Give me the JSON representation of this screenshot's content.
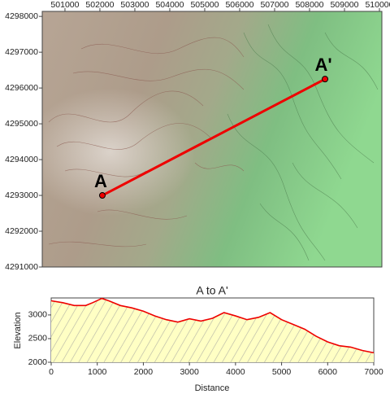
{
  "chart_data": [
    {
      "type": "map",
      "xlim": [
        500350,
        510070
      ],
      "ylim": [
        4291000,
        4298140
      ],
      "xticks": [
        501000,
        502000,
        503000,
        504000,
        505000,
        506000,
        507000,
        508000,
        509000,
        510000
      ],
      "yticks": [
        4291000,
        4292000,
        4293000,
        4294000,
        4295000,
        4296000,
        4297000,
        4298000
      ],
      "points": [
        {
          "label": "A",
          "x": 502070,
          "y": 4293000
        },
        {
          "label": "A'",
          "x": 508443,
          "y": 4296250
        }
      ],
      "color": "#ee0000"
    },
    {
      "type": "area",
      "title": "A to A'",
      "xlabel": "Distance",
      "ylabel": "Elevation",
      "xlim": [
        0,
        7000
      ],
      "ylim": [
        2000,
        3360
      ],
      "xticks": [
        0,
        1000,
        2000,
        3000,
        4000,
        5000,
        6000,
        7000
      ],
      "yticks": [
        2000,
        2500,
        3000
      ],
      "x": [
        0,
        250,
        500,
        750,
        900,
        1100,
        1250,
        1500,
        1750,
        2000,
        2250,
        2500,
        2750,
        3000,
        3250,
        3500,
        3750,
        4000,
        4250,
        4500,
        4750,
        5000,
        5250,
        5500,
        5750,
        6000,
        6250,
        6500,
        6750,
        7000
      ],
      "values": [
        3300,
        3260,
        3200,
        3200,
        3260,
        3350,
        3300,
        3200,
        3150,
        3080,
        2980,
        2900,
        2850,
        2920,
        2870,
        2930,
        3050,
        2980,
        2900,
        2950,
        3050,
        2900,
        2800,
        2700,
        2550,
        2430,
        2350,
        2320,
        2250,
        2200
      ],
      "color": "#ee0000",
      "fill": "#ffffc4"
    }
  ]
}
